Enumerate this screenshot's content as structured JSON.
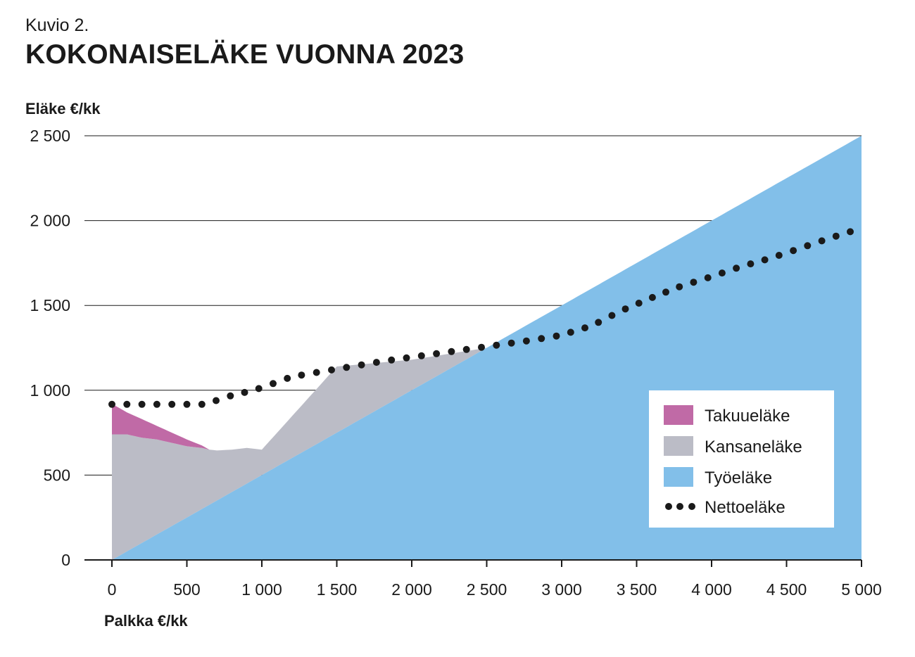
{
  "header": {
    "kicker": "Kuvio 2.",
    "title": "KOKONAISELÄKE VUONNA 2023"
  },
  "chart_data": {
    "type": "area",
    "ylabel": "Eläke €/kk",
    "xlabel": "Palkka €/kk",
    "xlim": [
      0,
      5000
    ],
    "ylim": [
      0,
      2500
    ],
    "x_ticks": [
      0,
      500,
      1000,
      1500,
      2000,
      2500,
      3000,
      3500,
      4000,
      4500,
      5000
    ],
    "x_tick_labels": [
      "0",
      "500",
      "1 000",
      "1 500",
      "2 000",
      "2 500",
      "3 000",
      "3 500",
      "4 000",
      "4 500",
      "5 000"
    ],
    "y_ticks": [
      0,
      500,
      1000,
      1500,
      2000,
      2500
    ],
    "y_tick_labels": [
      "0",
      "500",
      "1 000",
      "1 500",
      "2 000",
      "2 500"
    ],
    "grid": "horizontal",
    "legend_position": "bottom-right",
    "colors": {
      "takuuelake": "#c06aa6",
      "kansanelake": "#bbbcc6",
      "tyoelake": "#82bfe9",
      "nettoelake": "#1a1a1a"
    },
    "series": [
      {
        "name": "Takuueläke",
        "kind": "stacked-area",
        "x": [
          0,
          100,
          200,
          300,
          400,
          500,
          600,
          650
        ],
        "values": [
          180,
          130,
          110,
          80,
          60,
          40,
          15,
          0
        ]
      },
      {
        "name": "Kansaneläke",
        "kind": "stacked-area",
        "x": [
          0,
          100,
          200,
          300,
          400,
          500,
          600,
          650,
          700,
          800,
          900,
          1000,
          1500,
          2000,
          2500,
          3000,
          3050
        ],
        "values": [
          740,
          690,
          620,
          560,
          490,
          420,
          360,
          325,
          295,
          250,
          210,
          150,
          390,
          180,
          0,
          0,
          0
        ]
      },
      {
        "name": "Työeläke",
        "kind": "stacked-area",
        "x": [
          0,
          5000
        ],
        "values": [
          0,
          2500
        ]
      },
      {
        "name": "Nettoeläke",
        "kind": "dotted-line",
        "x": [
          0,
          100,
          200,
          300,
          400,
          500,
          600,
          700,
          800,
          900,
          1000,
          1200,
          1400,
          1600,
          1800,
          2000,
          2200,
          2400,
          2600,
          2800,
          3000,
          3200,
          3400,
          3600,
          3800,
          4000,
          4200,
          4400,
          4600,
          4800,
          5000
        ],
        "values": [
          917,
          917,
          917,
          917,
          917,
          917,
          917,
          940,
          970,
          990,
          1015,
          1080,
          1110,
          1140,
          1170,
          1195,
          1220,
          1245,
          1270,
          1295,
          1325,
          1380,
          1470,
          1545,
          1615,
          1670,
          1730,
          1780,
          1840,
          1900,
          1955
        ]
      }
    ]
  }
}
